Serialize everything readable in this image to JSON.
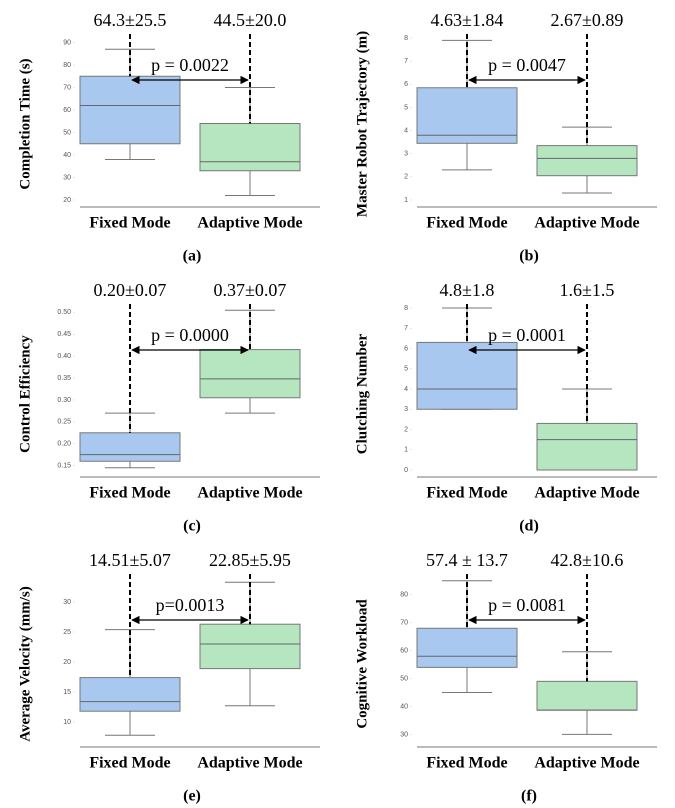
{
  "chart_data": [
    {
      "type": "box",
      "y_label": "Completion Time (s)",
      "categories": [
        "Fixed Mode",
        "Adaptive Mode"
      ],
      "colors": [
        "#a9c8f0",
        "#b5e6c0"
      ],
      "whisker_low": [
        38,
        22
      ],
      "q1": [
        45,
        33
      ],
      "median": [
        62,
        37
      ],
      "q3": [
        75,
        54
      ],
      "whisker_high": [
        87,
        70
      ],
      "annotations": [
        "64.3±25.5",
        "44.5±20.0"
      ],
      "p_value": "p = 0.0022",
      "caption": "(a)",
      "ylim": [
        20,
        92
      ],
      "yticks": [
        20,
        30,
        40,
        50,
        60,
        70,
        80,
        90
      ]
    },
    {
      "type": "box",
      "y_label": "Master Robot Trajectory (m)",
      "categories": [
        "Fixed Mode",
        "Adaptive Mode"
      ],
      "colors": [
        "#a9c8f0",
        "#b5e6c0"
      ],
      "whisker_low": [
        2.3,
        1.3
      ],
      "q1": [
        3.45,
        2.05
      ],
      "median": [
        3.8,
        2.8
      ],
      "q3": [
        5.85,
        3.35
      ],
      "whisker_high": [
        7.9,
        4.15
      ],
      "annotations": [
        "4.63±1.84",
        "2.67±0.89"
      ],
      "p_value": "p = 0.0047",
      "caption": "(b)",
      "ylim": [
        1,
        8
      ],
      "yticks": [
        1,
        2,
        3,
        4,
        5,
        6,
        7,
        8
      ]
    },
    {
      "type": "box",
      "y_label": "Control Efficiency",
      "categories": [
        "Fixed Mode",
        "Adaptive Mode"
      ],
      "colors": [
        "#a9c8f0",
        "#b5e6c0"
      ],
      "whisker_low": [
        0.145,
        0.27
      ],
      "q1": [
        0.16,
        0.305
      ],
      "median": [
        0.175,
        0.348
      ],
      "q3": [
        0.225,
        0.415
      ],
      "whisker_high": [
        0.27,
        0.505
      ],
      "annotations": [
        "0.20±0.07",
        "0.37±0.07"
      ],
      "p_value": "p = 0.0000",
      "caption": "(c)",
      "ylim": [
        0.14,
        0.51
      ],
      "yticks": [
        0.15,
        {
          "value": 0.2,
          "label": "0.20"
        },
        0.25,
        {
          "value": 0.3,
          "label": "0.30"
        },
        0.35,
        {
          "value": 0.4,
          "label": "0.40"
        },
        0.45,
        {
          "value": 0.5,
          "label": "0.50"
        }
      ]
    },
    {
      "type": "box",
      "y_label": "Clutching Number",
      "categories": [
        "Fixed Mode",
        "Adaptive Mode"
      ],
      "colors": [
        "#a9c8f0",
        "#b5e6c0"
      ],
      "whisker_low": [
        3,
        0
      ],
      "q1": [
        3,
        0
      ],
      "median": [
        4,
        1.5
      ],
      "q3": [
        6.3,
        2.3
      ],
      "whisker_high": [
        8,
        4
      ],
      "annotations": [
        "4.8±1.8",
        "1.6±1.5"
      ],
      "p_value": "p = 0.0001",
      "caption": "(d)",
      "ylim": [
        0,
        8
      ],
      "yticks": [
        0,
        1,
        2,
        3,
        4,
        5,
        6,
        7,
        8
      ]
    },
    {
      "type": "box",
      "y_label": "Average Velocity (mm/s)",
      "categories": [
        "Fixed Mode",
        "Adaptive Mode"
      ],
      "colors": [
        "#a9c8f0",
        "#b5e6c0"
      ],
      "whisker_low": [
        7.8,
        12.7
      ],
      "q1": [
        11.8,
        18.9
      ],
      "median": [
        13.4,
        23
      ],
      "q3": [
        17.4,
        26.3
      ],
      "whisker_high": [
        25.4,
        33.3
      ],
      "annotations": [
        "14.51±5.07",
        "22.85±5.95"
      ],
      "p_value": "p=0.0013",
      "caption": "(e)",
      "ylim": [
        7,
        34
      ],
      "yticks": [
        10,
        15,
        20,
        25,
        30
      ]
    },
    {
      "type": "box",
      "y_label": "Cognitive Workload",
      "categories": [
        "Fixed Mode",
        "Adaptive Mode"
      ],
      "colors": [
        "#a9c8f0",
        "#b5e6c0"
      ],
      "whisker_low": [
        45,
        30
      ],
      "q1": [
        54,
        38.7
      ],
      "median": [
        58,
        38.7
      ],
      "q3": [
        68,
        49
      ],
      "whisker_high": [
        85,
        59.6
      ],
      "annotations": [
        "57.4 ± 13.7",
        "42.8±10.6"
      ],
      "p_value": "p = 0.0081",
      "caption": "(f)",
      "ylim": [
        28,
        86
      ],
      "yticks": [
        30,
        40,
        50,
        60,
        70,
        80
      ]
    }
  ]
}
